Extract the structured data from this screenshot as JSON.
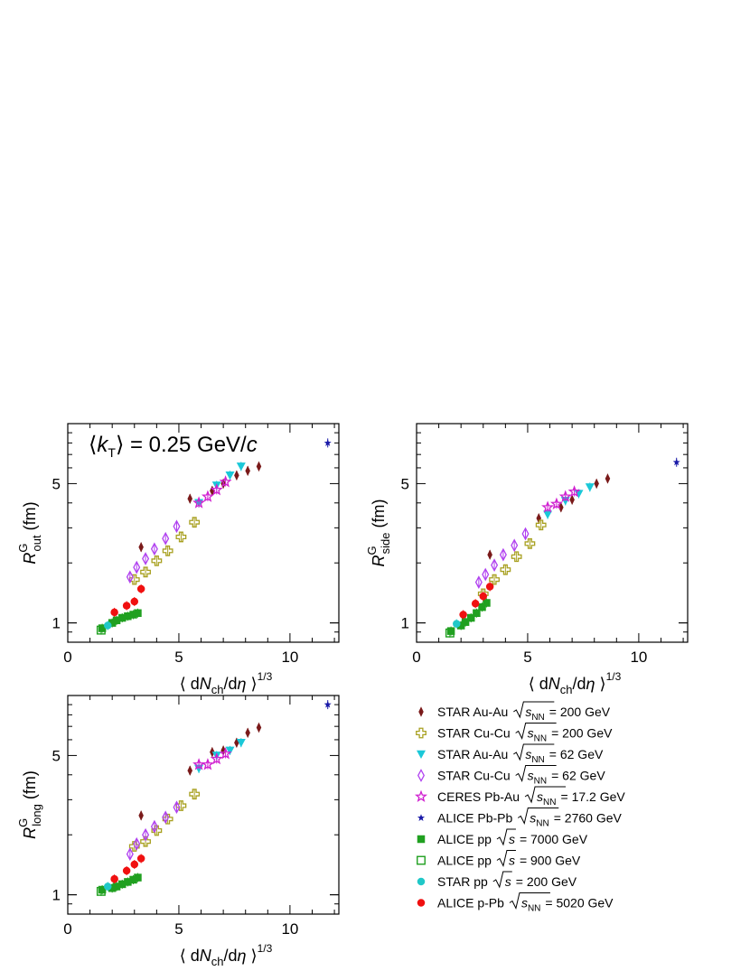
{
  "figure": {
    "annotation": "⟨k_T⟩ = 0.25 GeV/c",
    "xlabel": "⟨ dN_ch/dη ⟩^1/3"
  },
  "chart_data": [
    {
      "type": "scatter",
      "panel": "out",
      "ylabel": "R^G_out (fm)",
      "xlim": [
        0,
        12.2
      ],
      "ylim": [
        0.8,
        10
      ],
      "yscale": "log",
      "xticks": [
        0,
        5,
        10
      ],
      "yticks": [
        1,
        5
      ],
      "series": [
        {
          "key": "star_auau_200",
          "points": [
            [
              3.3,
              2.4
            ],
            [
              5.5,
              4.2
            ],
            [
              6.5,
              4.6
            ],
            [
              7.0,
              5.0
            ],
            [
              7.6,
              5.5
            ],
            [
              8.1,
              5.8
            ],
            [
              8.6,
              6.1
            ]
          ]
        },
        {
          "key": "star_cucu_200",
          "points": [
            [
              3.0,
              1.65
            ],
            [
              3.5,
              1.8
            ],
            [
              4.0,
              2.05
            ],
            [
              4.5,
              2.3
            ],
            [
              5.1,
              2.7
            ],
            [
              5.7,
              3.2
            ]
          ]
        },
        {
          "key": "star_auau_62",
          "points": [
            [
              5.9,
              4.0
            ],
            [
              6.7,
              4.9
            ],
            [
              7.3,
              5.5
            ],
            [
              7.8,
              6.1
            ]
          ]
        },
        {
          "key": "star_cucu_62",
          "points": [
            [
              2.8,
              1.7
            ],
            [
              3.1,
              1.9
            ],
            [
              3.5,
              2.1
            ],
            [
              3.9,
              2.35
            ],
            [
              4.4,
              2.65
            ],
            [
              4.9,
              3.05
            ]
          ]
        },
        {
          "key": "ceres_pbau",
          "points": [
            [
              5.9,
              4.0
            ],
            [
              6.3,
              4.3
            ],
            [
              6.7,
              4.65
            ],
            [
              7.1,
              5.1
            ]
          ]
        },
        {
          "key": "alice_pbpb",
          "points": [
            [
              11.7,
              8.0
            ]
          ]
        },
        {
          "key": "alice_pp_7000",
          "points": [
            [
              1.55,
              0.94
            ],
            [
              2.0,
              1.0
            ],
            [
              2.2,
              1.03
            ],
            [
              2.45,
              1.06
            ],
            [
              2.7,
              1.08
            ],
            [
              2.95,
              1.1
            ],
            [
              3.15,
              1.12
            ]
          ]
        },
        {
          "key": "alice_pp_900",
          "points": [
            [
              1.5,
              0.92
            ]
          ]
        },
        {
          "key": "star_pp_200",
          "points": [
            [
              1.8,
              0.97
            ]
          ]
        },
        {
          "key": "alice_ppb",
          "points": [
            [
              2.1,
              1.13
            ],
            [
              2.65,
              1.22
            ],
            [
              3.0,
              1.28
            ],
            [
              3.3,
              1.48
            ]
          ]
        }
      ]
    },
    {
      "type": "scatter",
      "panel": "side",
      "ylabel": "R^G_side (fm)",
      "xlim": [
        0,
        12.2
      ],
      "ylim": [
        0.8,
        10
      ],
      "yscale": "log",
      "xticks": [
        0,
        5,
        10
      ],
      "yticks": [
        1,
        5
      ],
      "series": [
        {
          "key": "star_auau_200",
          "points": [
            [
              3.3,
              2.2
            ],
            [
              5.5,
              3.35
            ],
            [
              6.5,
              3.8
            ],
            [
              7.0,
              4.15
            ],
            [
              8.1,
              5.0
            ],
            [
              8.6,
              5.3
            ]
          ]
        },
        {
          "key": "star_cucu_200",
          "points": [
            [
              3.0,
              1.4
            ],
            [
              3.5,
              1.65
            ],
            [
              4.0,
              1.85
            ],
            [
              4.5,
              2.15
            ],
            [
              5.1,
              2.5
            ],
            [
              5.6,
              3.1
            ]
          ]
        },
        {
          "key": "star_auau_62",
          "points": [
            [
              5.9,
              3.5
            ],
            [
              6.7,
              4.1
            ],
            [
              7.3,
              4.45
            ],
            [
              7.8,
              4.8
            ]
          ]
        },
        {
          "key": "star_cucu_62",
          "points": [
            [
              2.8,
              1.6
            ],
            [
              3.1,
              1.75
            ],
            [
              3.5,
              1.95
            ],
            [
              3.9,
              2.2
            ],
            [
              4.4,
              2.45
            ],
            [
              4.9,
              2.8
            ]
          ]
        },
        {
          "key": "ceres_pbau",
          "points": [
            [
              5.9,
              3.8
            ],
            [
              6.3,
              3.95
            ],
            [
              6.7,
              4.3
            ],
            [
              7.1,
              4.55
            ]
          ]
        },
        {
          "key": "alice_pbpb",
          "points": [
            [
              11.7,
              6.4
            ]
          ]
        },
        {
          "key": "alice_pp_7000",
          "points": [
            [
              1.55,
              0.91
            ],
            [
              2.0,
              0.97
            ],
            [
              2.2,
              1.01
            ],
            [
              2.45,
              1.06
            ],
            [
              2.7,
              1.12
            ],
            [
              2.95,
              1.2
            ],
            [
              3.15,
              1.26
            ]
          ]
        },
        {
          "key": "alice_pp_900",
          "points": [
            [
              1.5,
              0.89
            ]
          ]
        },
        {
          "key": "star_pp_200",
          "points": [
            [
              1.8,
              0.99
            ]
          ]
        },
        {
          "key": "alice_ppb",
          "points": [
            [
              2.1,
              1.1
            ],
            [
              2.65,
              1.25
            ],
            [
              3.0,
              1.36
            ],
            [
              3.3,
              1.52
            ]
          ]
        }
      ]
    },
    {
      "type": "scatter",
      "panel": "long",
      "ylabel": "R^G_long (fm)",
      "xlim": [
        0,
        12.2
      ],
      "ylim": [
        0.8,
        10
      ],
      "yscale": "log",
      "xticks": [
        0,
        5,
        10
      ],
      "yticks": [
        1,
        5
      ],
      "series": [
        {
          "key": "star_auau_200",
          "points": [
            [
              3.3,
              2.5
            ],
            [
              5.5,
              4.2
            ],
            [
              6.5,
              5.2
            ],
            [
              7.0,
              5.3
            ],
            [
              7.6,
              5.8
            ],
            [
              8.1,
              6.5
            ],
            [
              8.6,
              6.9
            ]
          ]
        },
        {
          "key": "star_cucu_200",
          "points": [
            [
              3.0,
              1.75
            ],
            [
              3.5,
              1.85
            ],
            [
              4.0,
              2.1
            ],
            [
              4.5,
              2.4
            ],
            [
              5.1,
              2.8
            ],
            [
              5.7,
              3.2
            ]
          ]
        },
        {
          "key": "star_auau_62",
          "points": [
            [
              5.9,
              4.3
            ],
            [
              6.7,
              5.0
            ],
            [
              7.3,
              5.3
            ],
            [
              7.8,
              5.8
            ]
          ]
        },
        {
          "key": "star_cucu_62",
          "points": [
            [
              2.8,
              1.6
            ],
            [
              3.1,
              1.8
            ],
            [
              3.5,
              2.0
            ],
            [
              3.9,
              2.2
            ],
            [
              4.4,
              2.45
            ],
            [
              4.9,
              2.75
            ]
          ]
        },
        {
          "key": "ceres_pbau",
          "points": [
            [
              5.9,
              4.5
            ],
            [
              6.3,
              4.5
            ],
            [
              6.7,
              4.8
            ],
            [
              7.1,
              5.1
            ]
          ]
        },
        {
          "key": "alice_pbpb",
          "points": [
            [
              11.7,
              9.0
            ]
          ]
        },
        {
          "key": "alice_pp_7000",
          "points": [
            [
              1.55,
              1.06
            ],
            [
              2.0,
              1.08
            ],
            [
              2.2,
              1.1
            ],
            [
              2.45,
              1.13
            ],
            [
              2.7,
              1.16
            ],
            [
              2.95,
              1.19
            ],
            [
              3.15,
              1.22
            ]
          ]
        },
        {
          "key": "alice_pp_900",
          "points": [
            [
              1.5,
              1.04
            ]
          ]
        },
        {
          "key": "star_pp_200",
          "points": [
            [
              1.8,
              1.1
            ]
          ]
        },
        {
          "key": "alice_ppb",
          "points": [
            [
              2.1,
              1.2
            ],
            [
              2.65,
              1.32
            ],
            [
              3.0,
              1.42
            ],
            [
              3.3,
              1.52
            ]
          ]
        }
      ]
    }
  ],
  "legend": [
    {
      "key": "star_auau_200",
      "label": "STAR Au-Au",
      "energy": "= 200 GeV",
      "sqrt": "s_NN",
      "marker": "diamond-filled",
      "color": "#7a1a1a"
    },
    {
      "key": "star_cucu_200",
      "label": "STAR Cu-Cu",
      "energy": "= 200 GeV",
      "sqrt": "s_NN",
      "marker": "cross-open",
      "color": "#a8a020"
    },
    {
      "key": "star_auau_62",
      "label": "STAR Au-Au",
      "energy": "= 62 GeV",
      "sqrt": "s_NN",
      "marker": "triangle-down",
      "color": "#1ac8d8"
    },
    {
      "key": "star_cucu_62",
      "label": "STAR Cu-Cu",
      "energy": "= 62 GeV",
      "sqrt": "s_NN",
      "marker": "diamond-open",
      "color": "#b040f0"
    },
    {
      "key": "ceres_pbau",
      "label": "CERES Pb-Au",
      "energy": "= 17.2 GeV",
      "sqrt": "s_NN",
      "marker": "star-open",
      "color": "#d020d0"
    },
    {
      "key": "alice_pbpb",
      "label": "ALICE Pb-Pb",
      "energy": "= 2760 GeV",
      "sqrt": "s_NN",
      "marker": "star-filled",
      "color": "#1a1aa8"
    },
    {
      "key": "alice_pp_7000",
      "label": "ALICE pp",
      "energy": "= 7000 GeV",
      "sqrt": "s",
      "marker": "square-filled",
      "color": "#20a020"
    },
    {
      "key": "alice_pp_900",
      "label": "ALICE pp",
      "energy": "= 900 GeV",
      "sqrt": "s",
      "marker": "square-open",
      "color": "#20a020"
    },
    {
      "key": "star_pp_200",
      "label": "STAR pp",
      "energy": "= 200 GeV",
      "sqrt": "s",
      "marker": "circle-filled",
      "color": "#20c8c8"
    },
    {
      "key": "alice_ppb",
      "label": "ALICE p-Pb",
      "energy": "= 5020 GeV",
      "sqrt": "s_NN",
      "marker": "circle-filled",
      "color": "#f01010"
    }
  ]
}
